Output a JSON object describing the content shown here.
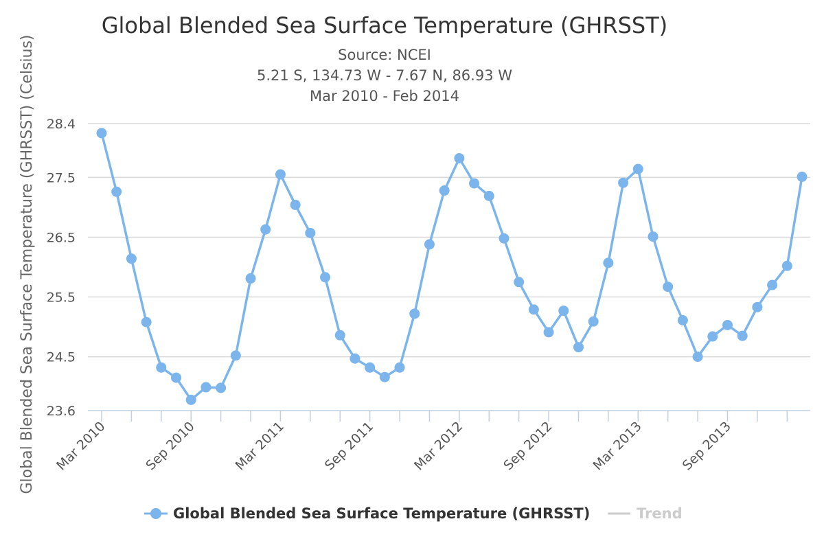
{
  "chart_data": {
    "type": "line",
    "title": "Global Blended Sea Surface Temperature (GHRSST)",
    "subtitle": [
      "Source: NCEI",
      "5.21 S, 134.73 W - 7.67 N, 86.93 W",
      "Mar 2010 - Feb 2014"
    ],
    "ylabel": "Global Blended Sea Surface Temperature (GHRSST) (Celsius)",
    "xlabel": "",
    "ylim": [
      23.6,
      28.4
    ],
    "yticks": [
      "23.6",
      "24.5",
      "25.5",
      "26.5",
      "27.5",
      "28.4"
    ],
    "x_tick_labels": [
      "Mar 2010",
      "Sep 2010",
      "Mar 2011",
      "Sep 2011",
      "Mar 2012",
      "Sep 2012",
      "Mar 2013",
      "Sep 2013"
    ],
    "x": [
      "2010-03",
      "2010-04",
      "2010-05",
      "2010-06",
      "2010-07",
      "2010-08",
      "2010-09",
      "2010-10",
      "2010-11",
      "2010-12",
      "2011-01",
      "2011-02",
      "2011-03",
      "2011-04",
      "2011-05",
      "2011-06",
      "2011-07",
      "2011-08",
      "2011-09",
      "2011-10",
      "2011-11",
      "2011-12",
      "2012-01",
      "2012-02",
      "2012-03",
      "2012-04",
      "2012-05",
      "2012-06",
      "2012-07",
      "2012-08",
      "2012-09",
      "2012-10",
      "2012-11",
      "2012-12",
      "2013-01",
      "2013-02",
      "2013-03",
      "2013-04",
      "2013-05",
      "2013-06",
      "2013-07",
      "2013-08",
      "2013-09",
      "2013-10",
      "2013-11",
      "2013-12",
      "2014-01",
      "2014-02"
    ],
    "series": [
      {
        "name": "Global Blended Sea Surface Temperature (GHRSST)",
        "color": "#7cb5ec",
        "values": [
          28.24,
          27.26,
          26.14,
          25.08,
          24.32,
          24.15,
          23.78,
          23.99,
          23.98,
          24.52,
          25.81,
          26.63,
          27.55,
          27.04,
          26.57,
          25.83,
          24.86,
          24.47,
          24.32,
          24.16,
          24.32,
          25.22,
          26.38,
          27.28,
          27.82,
          27.4,
          27.19,
          26.48,
          25.75,
          25.29,
          24.91,
          25.27,
          24.66,
          25.09,
          26.07,
          27.41,
          27.64,
          26.51,
          25.67,
          25.11,
          24.5,
          24.84,
          25.03,
          24.85,
          25.33,
          25.7,
          26.02,
          27.51
        ]
      }
    ],
    "legend": {
      "position": "bottom-center",
      "items": [
        {
          "label": "Global Blended Sea Surface Temperature (GHRSST)",
          "active": true
        },
        {
          "label": "Trend",
          "active": false
        }
      ]
    },
    "grid": true
  }
}
